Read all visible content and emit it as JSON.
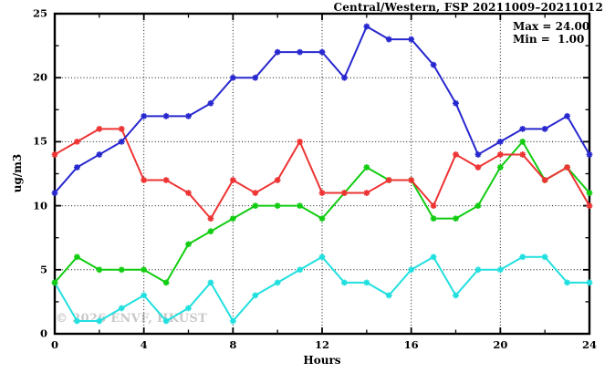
{
  "header": {
    "title": "Central/Western, FSP 20211009–20211012"
  },
  "annotation": {
    "max_line": "Max = 24.00",
    "min_line": "Min =  1.00"
  },
  "watermark": "© 2026 ENVF, HKUST",
  "chart_data": {
    "type": "line",
    "title": "Central/Western, FSP 20211009–20211012",
    "xlabel": "Hours",
    "ylabel": "ug/m3",
    "xlim": [
      0,
      24
    ],
    "ylim": [
      0,
      25
    ],
    "xticks": [
      0,
      4,
      8,
      12,
      16,
      20,
      24
    ],
    "yticks": [
      0,
      5,
      10,
      15,
      20,
      25
    ],
    "x_minor_ticks": [
      2,
      6,
      10,
      14,
      18,
      22
    ],
    "y_minor_ticks": [
      2.5,
      7.5,
      12.5,
      17.5,
      22.5
    ],
    "grid_x": [
      4,
      8,
      12,
      16,
      20
    ],
    "grid_y": [
      5,
      10,
      15,
      20
    ],
    "grid_style": "dotted",
    "legend": "none",
    "marker": "asterisk",
    "x": [
      0,
      1,
      2,
      3,
      4,
      5,
      6,
      7,
      8,
      9,
      10,
      11,
      12,
      13,
      14,
      15,
      16,
      17,
      18,
      19,
      20,
      21,
      22,
      23,
      24
    ],
    "series": [
      {
        "name": "blue",
        "color": "#2727cf",
        "values": [
          11,
          13,
          14,
          15,
          17,
          17,
          17,
          18,
          20,
          20,
          22,
          22,
          22,
          20,
          24,
          23,
          23,
          21,
          18,
          14,
          15,
          16,
          16,
          17,
          14
        ]
      },
      {
        "name": "red",
        "color": "#ee3333",
        "values": [
          14,
          15,
          16,
          16,
          12,
          12,
          11,
          9,
          12,
          11,
          12,
          15,
          11,
          11,
          11,
          12,
          12,
          10,
          14,
          13,
          14,
          14,
          12,
          13,
          10
        ]
      },
      {
        "name": "green",
        "color": "#11cc11",
        "values": [
          4,
          6,
          5,
          5,
          5,
          4,
          7,
          8,
          9,
          10,
          10,
          10,
          9,
          11,
          13,
          12,
          12,
          9,
          9,
          10,
          13,
          15,
          12,
          13,
          11
        ]
      },
      {
        "name": "cyan",
        "color": "#22dfdf",
        "values": [
          4,
          1,
          1,
          2,
          3,
          1,
          2,
          4,
          1,
          3,
          4,
          5,
          6,
          4,
          4,
          3,
          5,
          6,
          3,
          5,
          5,
          6,
          6,
          4,
          4
        ]
      }
    ],
    "stats": {
      "max": "24.00",
      "min": "1.00"
    }
  }
}
